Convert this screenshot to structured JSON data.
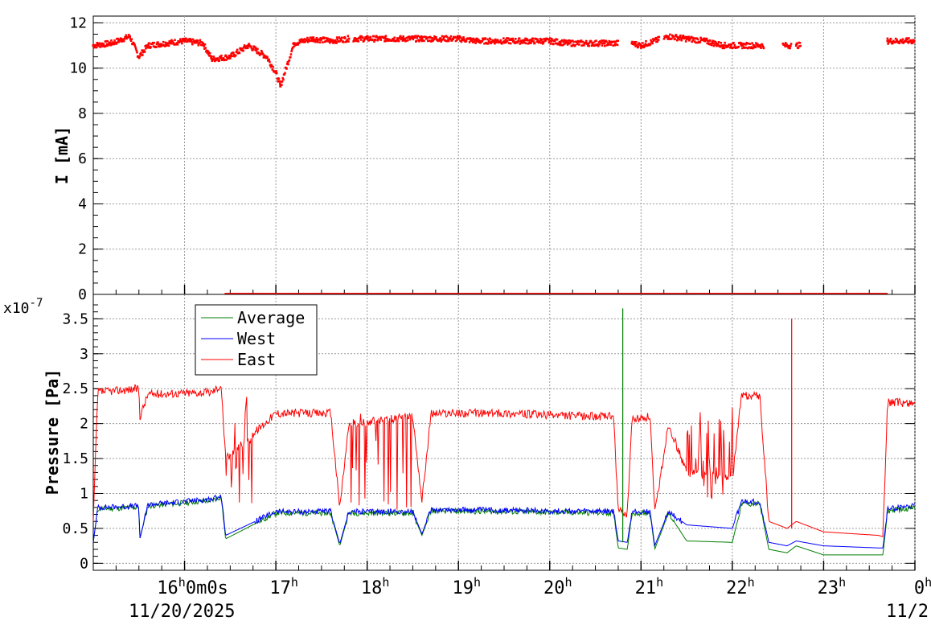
{
  "chart_data": [
    {
      "type": "scatter",
      "title": "",
      "xlabel": "",
      "ylabel": "I [mA]",
      "ylim": [
        0,
        12.3
      ],
      "y_ticks": [
        "0",
        "2",
        "4",
        "6",
        "8",
        "10",
        "12"
      ],
      "grid": true,
      "series": [
        {
          "color": "#ff0000",
          "x": [
            15.0,
            15.2,
            15.4,
            15.5,
            15.6,
            15.8,
            16.0,
            16.2,
            16.3,
            16.5,
            16.7,
            16.9,
            17.0,
            17.05,
            17.2,
            17.4,
            17.6,
            17.8,
            18.0,
            18.2,
            18.4,
            18.6,
            18.8,
            19.0,
            19.2,
            19.4,
            19.6,
            19.8,
            20.0,
            20.2,
            20.4,
            20.6,
            20.9,
            21.0,
            21.3,
            21.5,
            21.7,
            21.9,
            22.1,
            22.3,
            22.7,
            23.7,
            23.9
          ],
          "values": [
            11.0,
            11.1,
            11.4,
            10.5,
            11.0,
            11.1,
            11.2,
            11.1,
            10.4,
            10.5,
            11.0,
            10.5,
            9.8,
            9.2,
            11.1,
            11.3,
            11.2,
            11.3,
            11.3,
            11.3,
            11.3,
            11.3,
            11.3,
            11.3,
            11.2,
            11.2,
            11.2,
            11.2,
            11.2,
            11.1,
            11.1,
            11.1,
            11.1,
            11.0,
            11.4,
            11.3,
            11.2,
            11.0,
            11.0,
            11.0,
            11.0,
            11.2,
            11.2
          ]
        }
      ]
    },
    {
      "type": "line",
      "title": "",
      "xlabel": "",
      "ylabel": "Pressure [Pa]",
      "y_scale_label": "x10",
      "y_scale_exponent": "-7",
      "ylim": [
        -0.1,
        3.85
      ],
      "y_ticks": [
        "0",
        "0.5",
        "1",
        "1.5",
        "2",
        "2.5",
        "3",
        "3.5"
      ],
      "x_tick_labels": [
        "16",
        "17",
        "18",
        "19",
        "20",
        "21",
        "22",
        "23",
        "0"
      ],
      "x_first_tick_suffix": "0m0s",
      "date_label": "11/20/2025",
      "date_label_right": "11/2",
      "grid": true,
      "legend_position": "top-left",
      "series": [
        {
          "name": "Average",
          "color": "#007f00",
          "x": [
            15.0,
            15.05,
            15.5,
            15.51,
            15.6,
            16.3,
            16.4,
            16.45,
            17.0,
            17.6,
            17.7,
            17.8,
            18.5,
            18.6,
            18.7,
            19.5,
            20.0,
            20.7,
            20.75,
            20.85,
            20.9,
            21.1,
            21.15,
            21.3,
            21.5,
            22.0,
            22.1,
            22.3,
            22.4,
            22.6,
            22.7,
            23.0,
            23.6,
            23.65,
            23.7,
            24.0
          ],
          "values": [
            0.3,
            0.78,
            0.8,
            0.35,
            0.82,
            0.9,
            0.95,
            0.35,
            0.72,
            0.72,
            0.25,
            0.72,
            0.72,
            0.4,
            0.75,
            0.74,
            0.73,
            0.72,
            0.22,
            0.2,
            0.72,
            0.72,
            0.2,
            0.72,
            0.32,
            0.3,
            0.85,
            0.85,
            0.2,
            0.15,
            0.25,
            0.12,
            0.12,
            0.12,
            0.75,
            0.8
          ]
        },
        {
          "name": "West",
          "color": "#0000ff",
          "x": [
            15.0,
            15.05,
            15.5,
            15.51,
            15.6,
            16.3,
            16.4,
            16.45,
            17.0,
            17.6,
            17.7,
            17.8,
            18.5,
            18.6,
            18.7,
            19.5,
            20.0,
            20.7,
            20.75,
            20.85,
            20.9,
            21.1,
            21.15,
            21.3,
            21.5,
            22.0,
            22.1,
            22.3,
            22.4,
            22.6,
            22.7,
            23.0,
            23.6,
            23.65,
            23.7,
            24.0
          ],
          "values": [
            0.3,
            0.8,
            0.82,
            0.35,
            0.84,
            0.92,
            0.97,
            0.4,
            0.74,
            0.74,
            0.28,
            0.74,
            0.74,
            0.42,
            0.77,
            0.76,
            0.75,
            0.74,
            0.32,
            0.3,
            0.74,
            0.74,
            0.25,
            0.74,
            0.55,
            0.5,
            0.88,
            0.88,
            0.3,
            0.25,
            0.32,
            0.25,
            0.22,
            0.22,
            0.78,
            0.82
          ]
        },
        {
          "name": "East",
          "color": "#ff0000",
          "x": [
            15.0,
            15.05,
            15.5,
            15.51,
            15.6,
            16.3,
            16.4,
            16.45,
            17.0,
            17.6,
            17.7,
            17.8,
            18.5,
            18.6,
            18.7,
            19.5,
            20.0,
            20.7,
            20.75,
            20.85,
            20.9,
            21.1,
            21.15,
            21.3,
            21.5,
            22.0,
            22.1,
            22.3,
            22.4,
            22.6,
            22.7,
            23.0,
            23.6,
            23.65,
            23.7,
            24.0
          ],
          "values": [
            0.6,
            2.45,
            2.5,
            2.1,
            2.42,
            2.45,
            2.55,
            1.5,
            2.15,
            2.15,
            0.8,
            2.0,
            2.1,
            0.9,
            2.15,
            2.15,
            2.12,
            2.1,
            0.75,
            0.7,
            2.05,
            2.1,
            0.7,
            2.0,
            1.3,
            1.2,
            2.4,
            2.4,
            0.6,
            0.5,
            0.6,
            0.45,
            0.4,
            0.38,
            2.3,
            2.3
          ]
        }
      ]
    }
  ]
}
